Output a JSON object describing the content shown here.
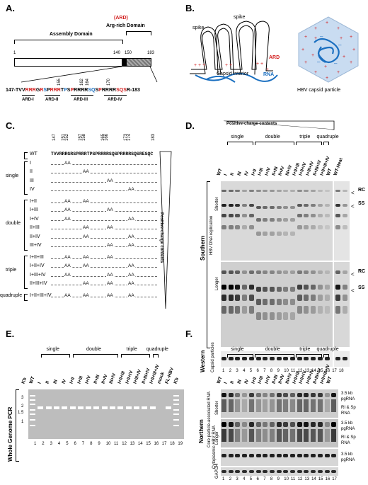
{
  "panels": {
    "A": "A.",
    "B": "B.",
    "C": "C.",
    "D": "D.",
    "E": "E.",
    "F": "F."
  },
  "panelA": {
    "ard_tag": "(ARD)",
    "assembly": "Assembly Domain",
    "argrich": "Arg-rich Domain",
    "pos1": "1",
    "pos140": "140",
    "pos150": "150",
    "pos183": "183",
    "seq_start": "147-",
    "seq_end": "-183",
    "seq_parts": [
      "TVV",
      "RRR",
      "G",
      "R",
      "S",
      "P",
      "RRR",
      "T",
      "P",
      "S",
      "P",
      "RRRR",
      "SQ",
      "S",
      "P",
      "RRRR",
      "SQS",
      "R",
      "ESQC"
    ],
    "pos_nums": [
      "155",
      "162",
      "164",
      "170"
    ],
    "ard_labels": [
      "ARD-I",
      "ARD-II",
      "ARD-III",
      "ARD-IV"
    ]
  },
  "panelB": {
    "spike1": "spike",
    "spike2": "spike",
    "ard": "ARD",
    "interior": "Capsid interior",
    "rna": "RNA",
    "particle": "HBV capsid particle"
  },
  "panelC": {
    "wt_seq": "TVVRRRGRSPRRRTPSPRRRRSQSPRRRRSQSRESQC",
    "nums": [
      "147",
      "151",
      "152",
      "157",
      "158",
      "165",
      "166",
      "173",
      "174",
      "183"
    ],
    "groups": [
      "single",
      "double",
      "triple",
      "quadruple"
    ],
    "rows": [
      "WT",
      "I",
      "II",
      "III",
      "IV",
      "I+II",
      "I+III",
      "I+IV",
      "II+III",
      "II+IV",
      "III+IV",
      "I+II+III",
      "I+II+IV",
      "I+III+IV",
      "II+III+IV",
      "I+II+III+IV"
    ],
    "aa": "AA",
    "triangle": "Positive-charge contents"
  },
  "panelD": {
    "triangle": "Positive-charge contents",
    "groups": [
      "single",
      "double",
      "triple",
      "quadruple"
    ],
    "lanes": [
      "WT",
      "I",
      "II",
      "III",
      "IV",
      "I+II",
      "I+III",
      "I+IV",
      "II+III",
      "II+IV",
      "III+IV",
      "I+II+III",
      "I+II+IV",
      "I+III+IV",
      "II+III+IV",
      "I+II+III+IV",
      "WT",
      "WT-Heat"
    ],
    "southern": "Southern",
    "western": "Western",
    "hbv_dna": "HBV DNA replication",
    "shorter": "Shorter",
    "longer": "Longer",
    "capsid": "Capsid particles",
    "rc": "RC",
    "ss": "SS",
    "numbers": [
      "1",
      "2",
      "3",
      "4",
      "5",
      "6",
      "7",
      "8",
      "9",
      "10",
      "11",
      "12",
      "13",
      "14",
      "15",
      "16",
      "17",
      "18"
    ]
  },
  "panelE": {
    "groups": [
      "single",
      "double",
      "triple",
      "quadruple"
    ],
    "lanes": [
      "Kb",
      "WT",
      "I",
      "II",
      "III",
      "IV",
      "I+II",
      "I+III",
      "I+IV",
      "II+III",
      "II+IV",
      "III+IV",
      "I+II+III",
      "I+II+IV",
      "I+III+IV",
      "II+III+IV",
      "I+II+III+IV",
      "mock",
      "FL-HBV",
      "Kb"
    ],
    "ylabel": "Whole Genome PCR",
    "kb": [
      "3",
      "2",
      "1.5",
      "1"
    ],
    "numbers": [
      "1",
      "2",
      "3",
      "4",
      "5",
      "6",
      "7",
      "8",
      "9",
      "10",
      "11",
      "12",
      "13",
      "14",
      "15",
      "16",
      "17",
      "18",
      "19"
    ]
  },
  "panelF": {
    "groups": [
      "single",
      "double",
      "triple",
      "quadruple"
    ],
    "lanes": [
      "WT",
      "I",
      "II",
      "III",
      "IV",
      "I+II",
      "I+III",
      "I+IV",
      "II+III",
      "II+IV",
      "III+IV",
      "I+II+III",
      "I+II+IV",
      "I+III+IV",
      "II+III+IV",
      "I+II+III+IV",
      "WT"
    ],
    "northern": "Northern",
    "core_rna": "Core particle-associated RNA",
    "shorter": "Shorter",
    "longer": "Longer",
    "cyto": "Cytoplasmic HBV RNA",
    "gapdh": "GAPDH",
    "pg1": "3.5 kb",
    "pg1b": "pgRNA",
    "ri1": "RI & Sp",
    "ri1b": "RNA",
    "pg2": "3.5 kb",
    "pg2b": "pgRNA",
    "ri2": "RI & Sp",
    "ri2b": "RNA",
    "pg3": "3.5 kb",
    "pg3b": "pgRNA",
    "numbers": [
      "1",
      "2",
      "3",
      "4",
      "5",
      "6",
      "7",
      "8",
      "9",
      "10",
      "11",
      "12",
      "13",
      "14",
      "15",
      "16",
      "17"
    ]
  }
}
